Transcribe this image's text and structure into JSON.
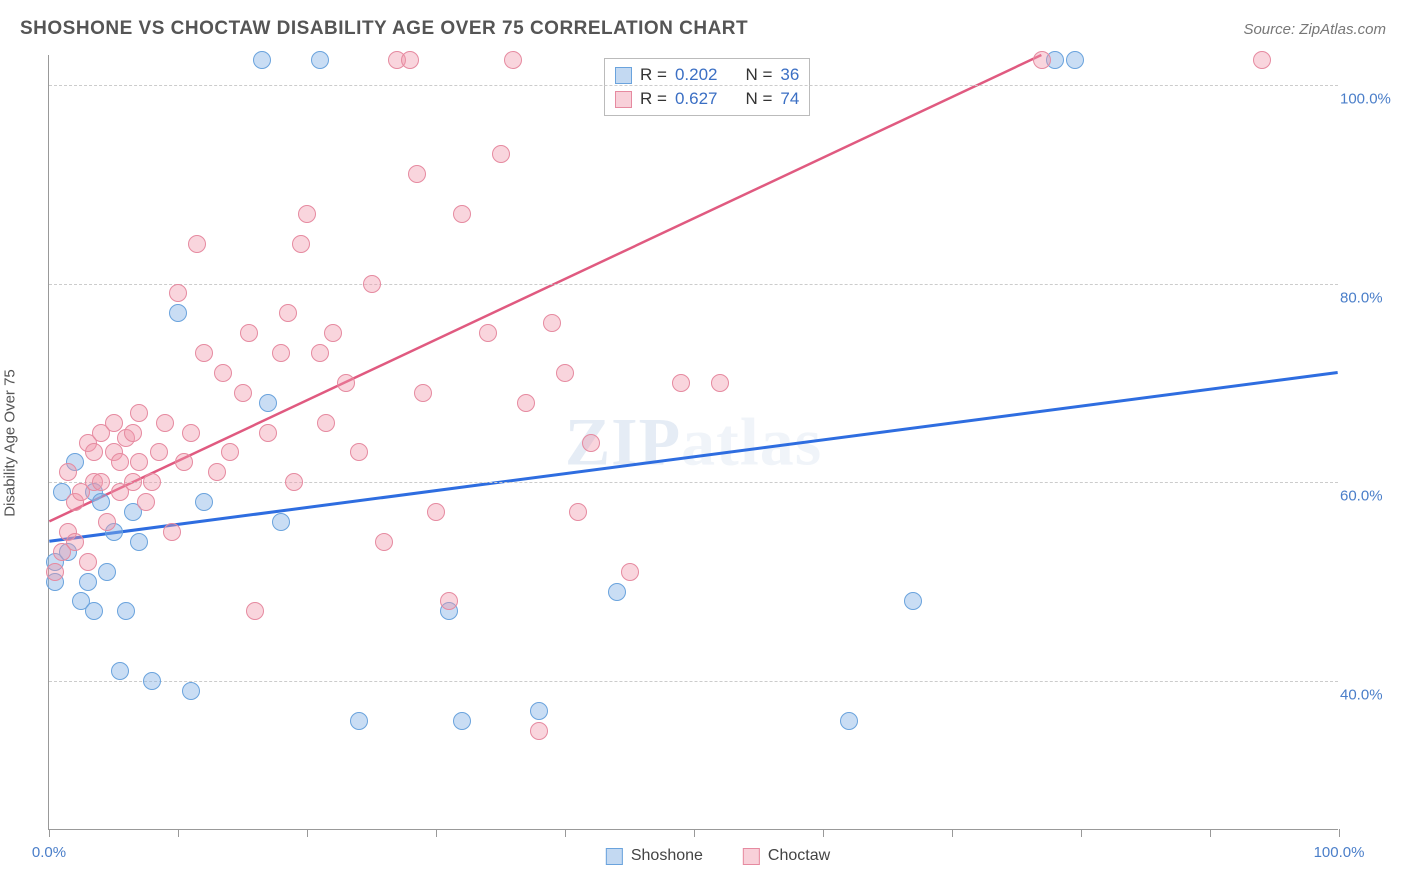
{
  "header": {
    "title": "SHOSHONE VS CHOCTAW DISABILITY AGE OVER 75 CORRELATION CHART",
    "source": "Source: ZipAtlas.com"
  },
  "watermark": "ZIPatlas",
  "chart": {
    "type": "scatter",
    "y_axis_title": "Disability Age Over 75",
    "xlim": [
      0,
      100
    ],
    "ylim": [
      25,
      103
    ],
    "ytick_values": [
      40,
      60,
      80,
      100
    ],
    "ytick_labels": [
      "40.0%",
      "60.0%",
      "80.0%",
      "100.0%"
    ],
    "xtick_values": [
      0,
      10,
      20,
      30,
      40,
      50,
      60,
      70,
      80,
      90,
      100
    ],
    "xtick_labels_visible": {
      "0": "0.0%",
      "100": "100.0%"
    },
    "background_color": "#ffffff",
    "grid_color": "#cccccc",
    "axis_color": "#999999",
    "label_color": "#4a7ec9",
    "series": [
      {
        "name": "Shoshone",
        "color_fill": "rgba(135,180,230,0.45)",
        "color_stroke": "#6aa3dd",
        "trend_color": "#2e6de0",
        "trend_width": 3,
        "R": "0.202",
        "N": "36",
        "trend": {
          "x1": 0,
          "y1": 54,
          "x2": 100,
          "y2": 71
        },
        "points": [
          [
            0.5,
            52
          ],
          [
            0.5,
            50
          ],
          [
            1,
            59
          ],
          [
            1.5,
            53
          ],
          [
            2,
            62
          ],
          [
            2.5,
            48
          ],
          [
            3,
            50
          ],
          [
            3.5,
            47
          ],
          [
            3.5,
            59
          ],
          [
            4,
            58
          ],
          [
            4.5,
            51
          ],
          [
            5,
            55
          ],
          [
            5.5,
            41
          ],
          [
            6,
            47
          ],
          [
            6.5,
            57
          ],
          [
            7,
            54
          ],
          [
            8,
            40
          ],
          [
            10,
            77
          ],
          [
            11,
            39
          ],
          [
            12,
            58
          ],
          [
            16.5,
            102.5
          ],
          [
            17,
            68
          ],
          [
            18,
            56
          ],
          [
            21,
            102.5
          ],
          [
            24,
            36
          ],
          [
            31,
            47
          ],
          [
            32,
            36
          ],
          [
            38,
            37
          ],
          [
            44,
            49
          ],
          [
            62,
            36
          ],
          [
            67,
            48
          ],
          [
            78,
            102.5
          ],
          [
            79.5,
            102.5
          ]
        ]
      },
      {
        "name": "Choctaw",
        "color_fill": "rgba(240,150,170,0.4)",
        "color_stroke": "#e68aa0",
        "trend_color": "#e05a80",
        "trend_width": 2.5,
        "R": "0.627",
        "N": "74",
        "trend": {
          "x1": 0,
          "y1": 56,
          "x2": 77,
          "y2": 103
        },
        "points": [
          [
            0.5,
            51
          ],
          [
            1,
            53
          ],
          [
            1.5,
            55
          ],
          [
            1.5,
            61
          ],
          [
            2,
            54
          ],
          [
            2,
            58
          ],
          [
            2.5,
            59
          ],
          [
            3,
            52
          ],
          [
            3,
            64
          ],
          [
            3.5,
            60
          ],
          [
            3.5,
            63
          ],
          [
            4,
            60
          ],
          [
            4,
            65
          ],
          [
            4.5,
            56
          ],
          [
            5,
            63
          ],
          [
            5,
            66
          ],
          [
            5.5,
            59
          ],
          [
            5.5,
            62
          ],
          [
            6,
            64.5
          ],
          [
            6.5,
            60
          ],
          [
            6.5,
            65
          ],
          [
            7,
            62
          ],
          [
            7,
            67
          ],
          [
            7.5,
            58
          ],
          [
            8,
            60
          ],
          [
            8.5,
            63
          ],
          [
            9,
            66
          ],
          [
            9.5,
            55
          ],
          [
            10,
            79
          ],
          [
            10.5,
            62
          ],
          [
            11,
            65
          ],
          [
            11.5,
            84
          ],
          [
            12,
            73
          ],
          [
            13,
            61
          ],
          [
            13.5,
            71
          ],
          [
            14,
            63
          ],
          [
            15,
            69
          ],
          [
            15.5,
            75
          ],
          [
            16,
            47
          ],
          [
            17,
            65
          ],
          [
            18,
            73
          ],
          [
            18.5,
            77
          ],
          [
            19,
            60
          ],
          [
            19.5,
            84
          ],
          [
            20,
            87
          ],
          [
            21,
            73
          ],
          [
            21.5,
            66
          ],
          [
            22,
            75
          ],
          [
            23,
            70
          ],
          [
            24,
            63
          ],
          [
            25,
            80
          ],
          [
            26,
            54
          ],
          [
            27,
            102.5
          ],
          [
            28,
            102.5
          ],
          [
            28.5,
            91
          ],
          [
            29,
            69
          ],
          [
            30,
            57
          ],
          [
            31,
            48
          ],
          [
            32,
            87
          ],
          [
            34,
            75
          ],
          [
            35,
            93
          ],
          [
            36,
            102.5
          ],
          [
            37,
            68
          ],
          [
            38,
            35
          ],
          [
            39,
            76
          ],
          [
            40,
            71
          ],
          [
            41,
            57
          ],
          [
            42,
            64
          ],
          [
            45,
            51
          ],
          [
            49,
            70
          ],
          [
            52,
            70
          ],
          [
            77,
            102.5
          ],
          [
            94,
            102.5
          ]
        ]
      }
    ],
    "stats_legend": {
      "rows": [
        {
          "series": 0,
          "r_label": "R =",
          "n_label": "N ="
        },
        {
          "series": 1,
          "r_label": "R =",
          "n_label": "N ="
        }
      ]
    }
  }
}
